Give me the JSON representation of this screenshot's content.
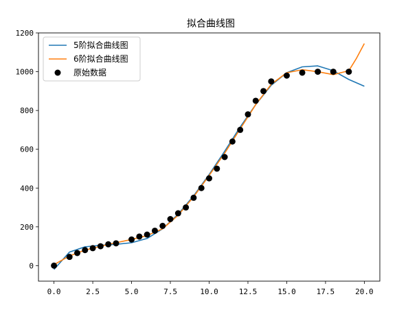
{
  "chart_data": {
    "type": "line",
    "title": "拟合曲线图",
    "xlabel": "",
    "ylabel": "",
    "xlim": [
      -1,
      21
    ],
    "ylim": [
      -80,
      1200
    ],
    "xticks": [
      0.0,
      2.5,
      5.0,
      7.5,
      10.0,
      12.5,
      15.0,
      17.5,
      20.0
    ],
    "xtick_labels": [
      "0.0",
      "2.5",
      "5.0",
      "7.5",
      "10.0",
      "12.5",
      "15.0",
      "17.5",
      "20.0"
    ],
    "yticks": [
      0,
      200,
      400,
      600,
      800,
      1000,
      1200
    ],
    "ytick_labels": [
      "0",
      "200",
      "400",
      "600",
      "800",
      "1000",
      "1200"
    ],
    "legend_position": "top-left",
    "grid": false,
    "series": [
      {
        "name": "5阶拟合曲线图",
        "kind": "line",
        "color": "#1f77b4",
        "x": [
          0,
          1,
          2,
          3,
          4,
          5,
          6,
          7,
          8,
          9,
          10,
          11,
          12,
          13,
          14,
          15,
          16,
          17,
          18,
          19,
          20
        ],
        "y": [
          -20,
          70,
          97,
          105,
          110,
          118,
          140,
          190,
          265,
          360,
          470,
          590,
          715,
          830,
          930,
          995,
          1025,
          1030,
          1005,
          960,
          925
        ]
      },
      {
        "name": "6阶拟合曲线图",
        "kind": "line",
        "color": "#ff7f0e",
        "x": [
          0,
          1,
          2,
          3,
          4,
          5,
          6,
          7,
          8,
          9,
          10,
          11,
          12,
          13,
          14,
          15,
          16,
          17,
          18,
          19,
          19.5,
          20
        ],
        "y": [
          5,
          50,
          80,
          100,
          118,
          135,
          155,
          190,
          260,
          355,
          465,
          580,
          705,
          830,
          935,
          995,
          1010,
          1000,
          985,
          1005,
          1070,
          1145
        ]
      },
      {
        "name": "原始数据",
        "kind": "scatter",
        "color": "#000000",
        "x": [
          0,
          1,
          1.5,
          2,
          2.5,
          3,
          3.5,
          4,
          5,
          5.5,
          6,
          6.5,
          7,
          7.5,
          8,
          8.5,
          9,
          9.5,
          10,
          10.5,
          11,
          11.5,
          12,
          12.5,
          13,
          13.5,
          14,
          15,
          16,
          17,
          18,
          19
        ],
        "y": [
          0,
          45,
          65,
          80,
          90,
          100,
          110,
          115,
          135,
          150,
          160,
          180,
          205,
          240,
          270,
          300,
          350,
          400,
          450,
          500,
          560,
          640,
          700,
          780,
          850,
          900,
          950,
          980,
          995,
          1000,
          1000,
          1000
        ]
      }
    ]
  }
}
